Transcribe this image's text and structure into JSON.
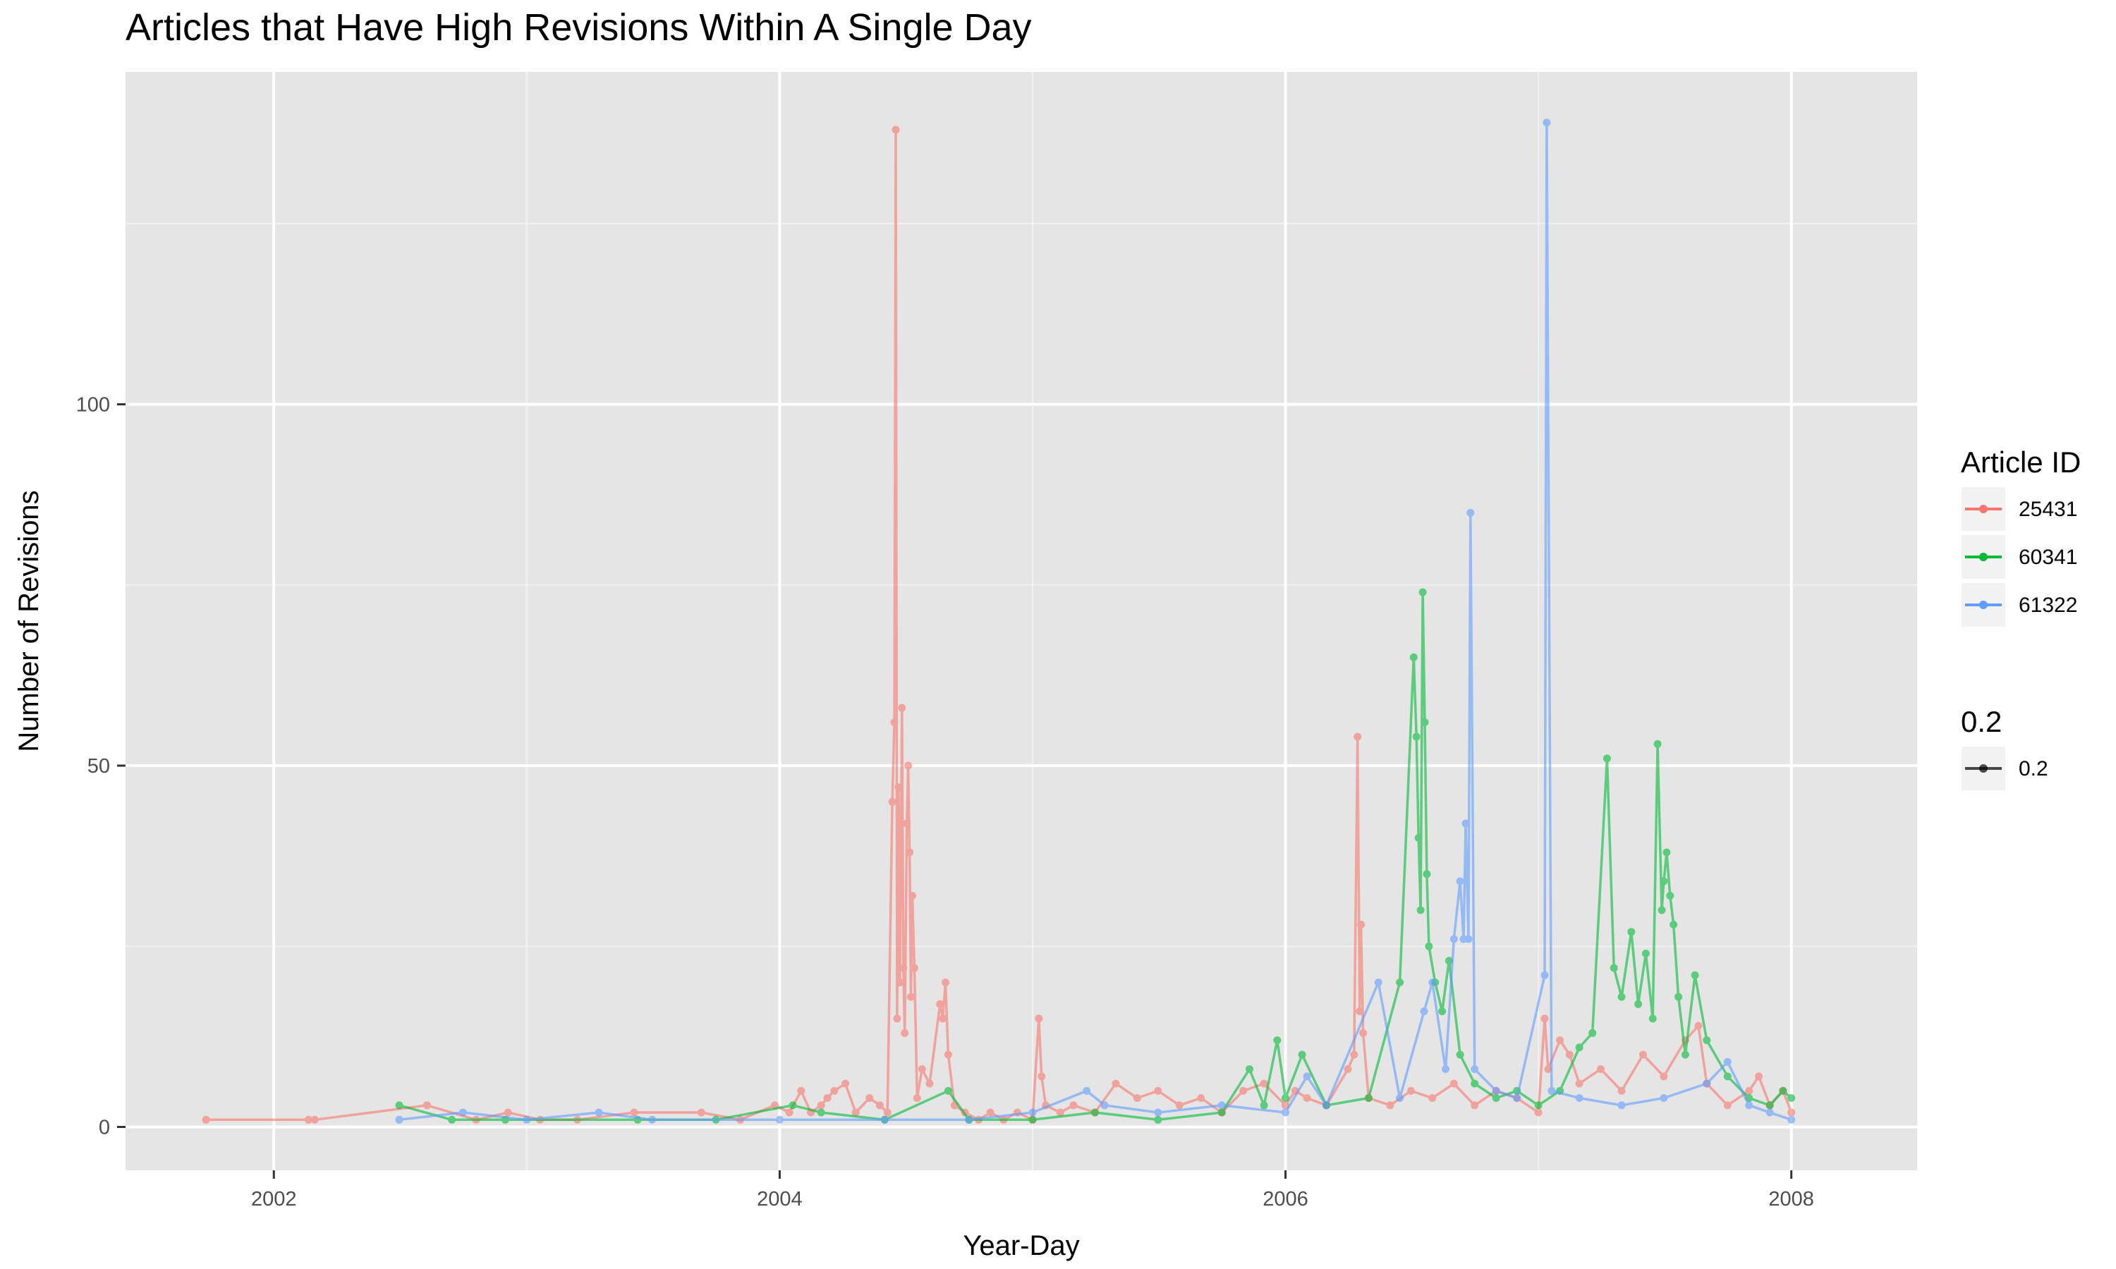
{
  "chart_data": {
    "type": "line",
    "title": "Articles that Have High Revisions Within A Single Day",
    "xlabel": "Year-Day",
    "ylabel": "Number of Revisions",
    "x_ticks": [
      "2002",
      "2004",
      "2006",
      "2008"
    ],
    "y_ticks": [
      "0",
      "50",
      "100"
    ],
    "xlim": [
      "2001-06-01",
      "2008-07-01"
    ],
    "ylim": [
      -6,
      146
    ],
    "grid": true,
    "alpha": 0.6,
    "legend": {
      "position": "right",
      "color_title": "Article ID",
      "alpha_title": "0.2",
      "alpha_entries": [
        "0.2"
      ]
    },
    "series": [
      {
        "name": "25431",
        "color": "#F8766D",
        "points": [
          [
            "2001-09-25",
            1
          ],
          [
            "2002-02-20",
            1
          ],
          [
            "2002-03-01",
            1
          ],
          [
            "2002-08-10",
            3
          ],
          [
            "2002-10-20",
            1
          ],
          [
            "2002-12-05",
            2
          ],
          [
            "2003-01-20",
            1
          ],
          [
            "2003-03-15",
            1
          ],
          [
            "2003-06-05",
            2
          ],
          [
            "2003-09-10",
            2
          ],
          [
            "2003-11-05",
            1
          ],
          [
            "2003-12-25",
            3
          ],
          [
            "2004-01-15",
            2
          ],
          [
            "2004-02-01",
            5
          ],
          [
            "2004-02-15",
            2
          ],
          [
            "2004-03-01",
            3
          ],
          [
            "2004-03-10",
            4
          ],
          [
            "2004-03-20",
            5
          ],
          [
            "2004-04-05",
            6
          ],
          [
            "2004-04-20",
            2
          ],
          [
            "2004-05-10",
            4
          ],
          [
            "2004-05-25",
            3
          ],
          [
            "2004-06-05",
            2
          ],
          [
            "2004-06-12",
            45
          ],
          [
            "2004-06-15",
            56
          ],
          [
            "2004-06-17",
            138
          ],
          [
            "2004-06-19",
            15
          ],
          [
            "2004-06-21",
            47
          ],
          [
            "2004-06-23",
            20
          ],
          [
            "2004-06-26",
            58
          ],
          [
            "2004-06-28",
            22
          ],
          [
            "2004-06-30",
            13
          ],
          [
            "2004-07-03",
            42
          ],
          [
            "2004-07-05",
            50
          ],
          [
            "2004-07-07",
            38
          ],
          [
            "2004-07-09",
            18
          ],
          [
            "2004-07-11",
            32
          ],
          [
            "2004-07-14",
            22
          ],
          [
            "2004-07-18",
            4
          ],
          [
            "2004-07-25",
            8
          ],
          [
            "2004-08-05",
            6
          ],
          [
            "2004-08-20",
            17
          ],
          [
            "2004-08-24",
            15
          ],
          [
            "2004-08-28",
            20
          ],
          [
            "2004-09-01",
            10
          ],
          [
            "2004-09-10",
            3
          ],
          [
            "2004-09-25",
            2
          ],
          [
            "2004-10-15",
            1
          ],
          [
            "2004-11-01",
            2
          ],
          [
            "2004-11-20",
            1
          ],
          [
            "2004-12-10",
            2
          ],
          [
            "2005-01-01",
            1
          ],
          [
            "2005-01-10",
            15
          ],
          [
            "2005-01-14",
            7
          ],
          [
            "2005-01-20",
            3
          ],
          [
            "2005-02-10",
            2
          ],
          [
            "2005-03-01",
            3
          ],
          [
            "2005-04-01",
            2
          ],
          [
            "2005-05-01",
            6
          ],
          [
            "2005-06-01",
            4
          ],
          [
            "2005-07-01",
            5
          ],
          [
            "2005-08-01",
            3
          ],
          [
            "2005-09-01",
            4
          ],
          [
            "2005-10-01",
            2
          ],
          [
            "2005-11-01",
            5
          ],
          [
            "2005-12-01",
            6
          ],
          [
            "2006-01-01",
            3
          ],
          [
            "2006-01-15",
            5
          ],
          [
            "2006-02-01",
            4
          ],
          [
            "2006-03-01",
            3
          ],
          [
            "2006-04-01",
            8
          ],
          [
            "2006-04-10",
            10
          ],
          [
            "2006-04-15",
            54
          ],
          [
            "2006-04-18",
            16
          ],
          [
            "2006-04-20",
            28
          ],
          [
            "2006-04-23",
            13
          ],
          [
            "2006-05-01",
            4
          ],
          [
            "2006-06-01",
            3
          ],
          [
            "2006-07-01",
            5
          ],
          [
            "2006-08-01",
            4
          ],
          [
            "2006-09-01",
            6
          ],
          [
            "2006-10-01",
            3
          ],
          [
            "2006-11-01",
            5
          ],
          [
            "2006-12-01",
            4
          ],
          [
            "2007-01-01",
            2
          ],
          [
            "2007-01-10",
            15
          ],
          [
            "2007-01-15",
            8
          ],
          [
            "2007-02-01",
            12
          ],
          [
            "2007-02-15",
            10
          ],
          [
            "2007-03-01",
            6
          ],
          [
            "2007-04-01",
            8
          ],
          [
            "2007-05-01",
            5
          ],
          [
            "2007-06-01",
            10
          ],
          [
            "2007-07-01",
            7
          ],
          [
            "2007-08-01",
            12
          ],
          [
            "2007-08-20",
            14
          ],
          [
            "2007-09-01",
            6
          ],
          [
            "2007-10-01",
            3
          ],
          [
            "2007-11-01",
            5
          ],
          [
            "2007-11-15",
            7
          ],
          [
            "2007-12-01",
            3
          ],
          [
            "2007-12-20",
            5
          ],
          [
            "2008-01-01",
            2
          ]
        ]
      },
      {
        "name": "60341",
        "color": "#00BA38",
        "points": [
          [
            "2002-07-01",
            3
          ],
          [
            "2002-09-15",
            1
          ],
          [
            "2002-12-01",
            1
          ],
          [
            "2003-06-10",
            1
          ],
          [
            "2003-10-01",
            1
          ],
          [
            "2004-01-20",
            3
          ],
          [
            "2004-03-01",
            2
          ],
          [
            "2004-06-01",
            1
          ],
          [
            "2004-09-01",
            5
          ],
          [
            "2004-10-01",
            1
          ],
          [
            "2005-01-01",
            1
          ],
          [
            "2005-04-01",
            2
          ],
          [
            "2005-07-01",
            1
          ],
          [
            "2005-10-01",
            2
          ],
          [
            "2005-11-10",
            8
          ],
          [
            "2005-12-01",
            3
          ],
          [
            "2005-12-20",
            12
          ],
          [
            "2006-01-01",
            4
          ],
          [
            "2006-01-25",
            10
          ],
          [
            "2006-03-01",
            3
          ],
          [
            "2006-05-01",
            4
          ],
          [
            "2006-06-15",
            20
          ],
          [
            "2006-07-05",
            65
          ],
          [
            "2006-07-09",
            54
          ],
          [
            "2006-07-12",
            40
          ],
          [
            "2006-07-15",
            30
          ],
          [
            "2006-07-18",
            74
          ],
          [
            "2006-07-21",
            56
          ],
          [
            "2006-07-24",
            35
          ],
          [
            "2006-07-27",
            25
          ],
          [
            "2006-08-05",
            20
          ],
          [
            "2006-08-15",
            16
          ],
          [
            "2006-08-25",
            23
          ],
          [
            "2006-09-10",
            10
          ],
          [
            "2006-10-01",
            6
          ],
          [
            "2006-11-01",
            4
          ],
          [
            "2006-12-01",
            5
          ],
          [
            "2007-01-01",
            3
          ],
          [
            "2007-02-01",
            5
          ],
          [
            "2007-03-01",
            11
          ],
          [
            "2007-03-20",
            13
          ],
          [
            "2007-04-10",
            51
          ],
          [
            "2007-04-20",
            22
          ],
          [
            "2007-05-01",
            18
          ],
          [
            "2007-05-15",
            27
          ],
          [
            "2007-05-25",
            17
          ],
          [
            "2007-06-05",
            24
          ],
          [
            "2007-06-15",
            15
          ],
          [
            "2007-06-22",
            53
          ],
          [
            "2007-06-28",
            30
          ],
          [
            "2007-07-01",
            34
          ],
          [
            "2007-07-05",
            38
          ],
          [
            "2007-07-10",
            32
          ],
          [
            "2007-07-15",
            28
          ],
          [
            "2007-07-22",
            18
          ],
          [
            "2007-08-01",
            10
          ],
          [
            "2007-08-15",
            21
          ],
          [
            "2007-09-01",
            12
          ],
          [
            "2007-10-01",
            7
          ],
          [
            "2007-11-01",
            4
          ],
          [
            "2007-12-01",
            3
          ],
          [
            "2007-12-20",
            5
          ],
          [
            "2008-01-01",
            4
          ]
        ]
      },
      {
        "name": "61322",
        "color": "#619CFF",
        "points": [
          [
            "2002-07-01",
            1
          ],
          [
            "2002-10-01",
            2
          ],
          [
            "2003-01-01",
            1
          ],
          [
            "2003-04-15",
            2
          ],
          [
            "2003-07-01",
            1
          ],
          [
            "2004-01-01",
            1
          ],
          [
            "2004-06-01",
            1
          ],
          [
            "2004-10-01",
            1
          ],
          [
            "2005-01-01",
            2
          ],
          [
            "2005-03-20",
            5
          ],
          [
            "2005-04-15",
            3
          ],
          [
            "2005-07-01",
            2
          ],
          [
            "2005-10-01",
            3
          ],
          [
            "2006-01-01",
            2
          ],
          [
            "2006-02-01",
            7
          ],
          [
            "2006-03-01",
            3
          ],
          [
            "2006-05-15",
            20
          ],
          [
            "2006-06-15",
            4
          ],
          [
            "2006-07-20",
            16
          ],
          [
            "2006-08-01",
            20
          ],
          [
            "2006-08-20",
            8
          ],
          [
            "2006-09-01",
            26
          ],
          [
            "2006-09-10",
            34
          ],
          [
            "2006-09-15",
            26
          ],
          [
            "2006-09-18",
            42
          ],
          [
            "2006-09-22",
            26
          ],
          [
            "2006-09-25",
            85
          ],
          [
            "2006-10-01",
            8
          ],
          [
            "2006-11-01",
            5
          ],
          [
            "2006-12-01",
            4
          ],
          [
            "2007-01-10",
            21
          ],
          [
            "2007-01-13",
            139
          ],
          [
            "2007-01-20",
            5
          ],
          [
            "2007-03-01",
            4
          ],
          [
            "2007-05-01",
            3
          ],
          [
            "2007-07-01",
            4
          ],
          [
            "2007-09-01",
            6
          ],
          [
            "2007-10-01",
            9
          ],
          [
            "2007-11-01",
            3
          ],
          [
            "2007-12-01",
            2
          ],
          [
            "2008-01-01",
            1
          ]
        ]
      }
    ]
  }
}
